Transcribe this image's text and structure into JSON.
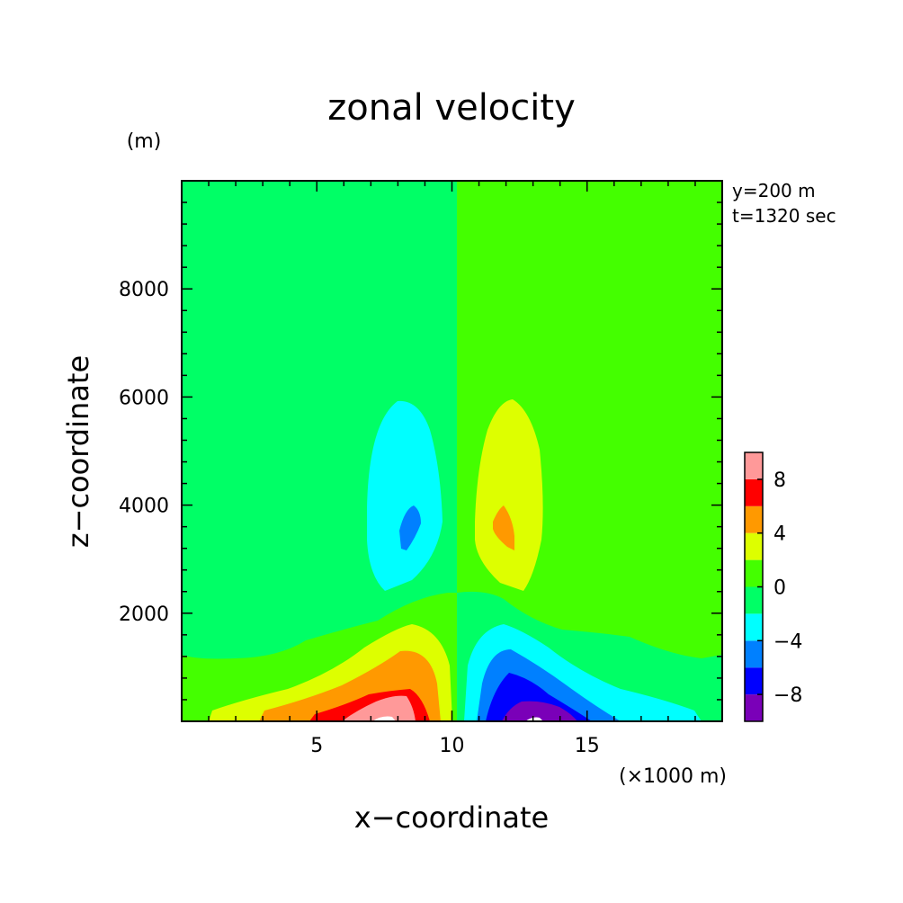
{
  "chart_data": {
    "type": "contour",
    "title": "zonal velocity",
    "xlabel": "x−coordinate",
    "ylabel": "z−coordinate",
    "x_unit": "(×1000 m)",
    "y_unit": "(m)",
    "xlim": [
      0,
      20
    ],
    "ylim": [
      0,
      10000
    ],
    "x_ticks": [
      5,
      10,
      15
    ],
    "x_tick_labels": [
      "5",
      "10",
      "15"
    ],
    "y_ticks": [
      2000,
      4000,
      6000,
      8000
    ],
    "y_tick_labels": [
      "2000",
      "4000",
      "6000",
      "8000"
    ],
    "info": [
      "y=200 m",
      "t=1320 sec"
    ],
    "colorbar": {
      "levels": [
        -10,
        -8,
        -6,
        -4,
        -2,
        0,
        2,
        4,
        6,
        8,
        10
      ],
      "tick_labels": [
        "−8",
        "−4",
        "0",
        "4",
        "8"
      ],
      "tick_values": [
        -8,
        -4,
        0,
        4,
        8
      ],
      "colors": [
        "#7a00b8",
        "#0000ff",
        "#0080ff",
        "#00ffff",
        "#00ff66",
        "#44ff00",
        "#ddff00",
        "#ff9900",
        "#ff0000",
        "#ff9999"
      ]
    },
    "fields": {
      "background_left": "#00ff66",
      "background_right": "#44ff00",
      "low_level_left_band": "#44ff00",
      "low_level_right_band": "#00ff66",
      "left_vortex_outer": "#00ffff",
      "left_vortex_core": "#0080ff",
      "right_vortex_outer": "#ddff00",
      "right_vortex_core": "#ff9900",
      "near_surface_max": "#ffffff"
    }
  }
}
